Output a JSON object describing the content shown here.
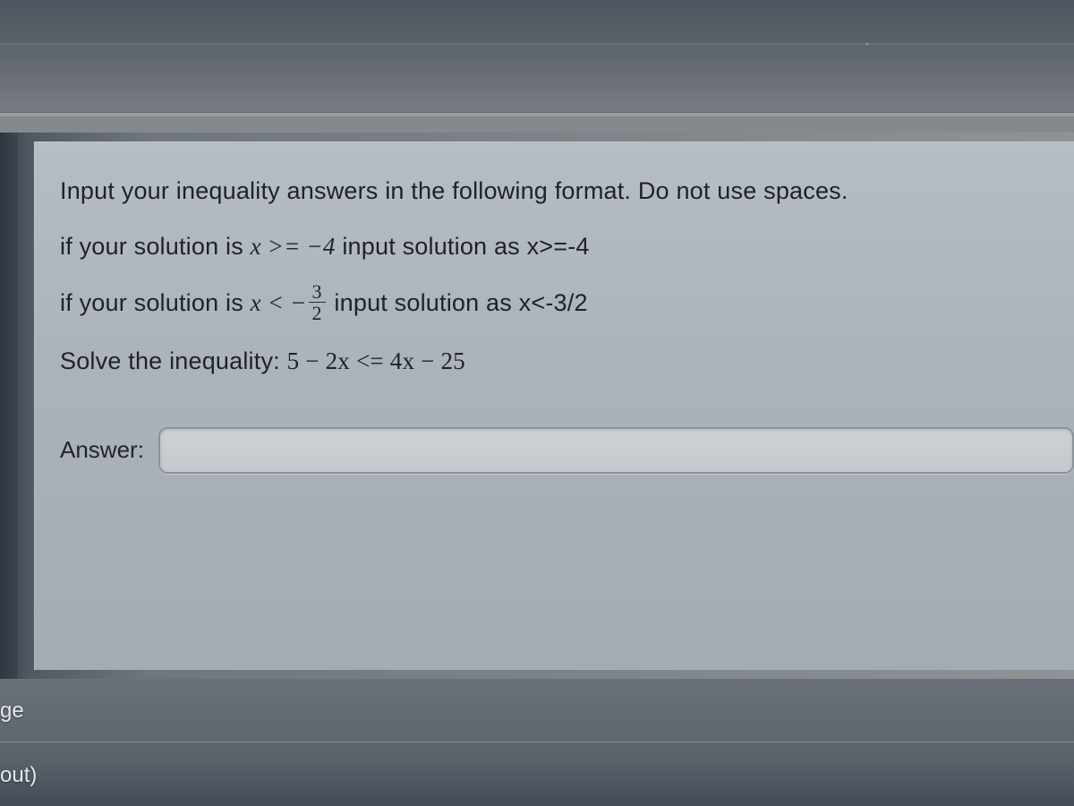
{
  "colors": {
    "page_bg_top": "#6a7278",
    "page_bg_bottom": "#6c747c",
    "card_bg": "#acb3ba",
    "text_color": "#1f2226",
    "input_border": "#8d939a",
    "input_bg": "#c8ccd0",
    "footer_text": "#e4e7ea"
  },
  "typography": {
    "body_family": "Arial, Helvetica, sans-serif",
    "math_family": "Times New Roman, Times, serif",
    "line_fontsize_pt": 20,
    "answer_label_fontsize_pt": 19,
    "footer_fontsize_pt": 18
  },
  "question": {
    "line1": "Input your inequality answers in the following format. Do not use spaces.",
    "line2_prefix": "if your solution is ",
    "line2_math": "x >= −4",
    "line2_suffix": " input solution as x>=-4",
    "line3_prefix": "if your solution is ",
    "line3_math_before_frac": "x < −",
    "line3_frac_num": "3",
    "line3_frac_den": "2",
    "line3_suffix": " input solution as x<-3/2",
    "line4_prefix": "Solve the inequality: ",
    "line4_math": "5 − 2x <= 4x − 25"
  },
  "answer": {
    "label": "Answer:",
    "value": "",
    "placeholder": ""
  },
  "footer": {
    "left1": "ge",
    "left2": "out)"
  }
}
